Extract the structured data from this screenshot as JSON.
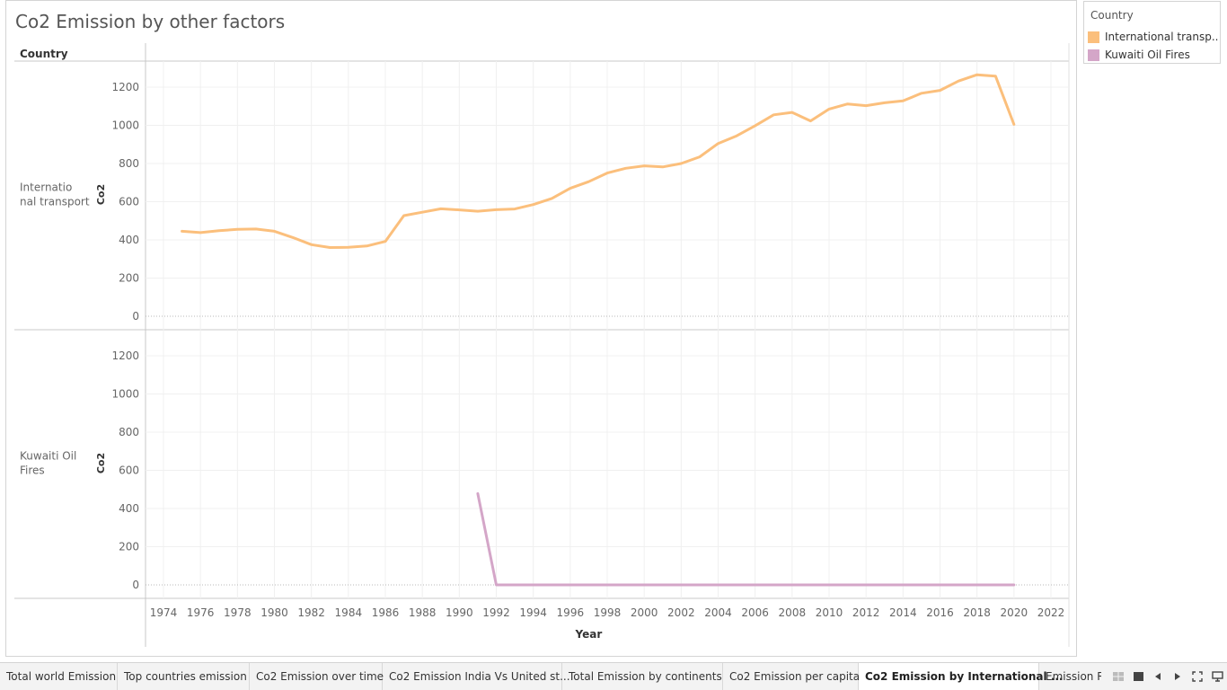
{
  "sheet": {
    "title": "Co2 Emission by other factors"
  },
  "legend": {
    "title": "Country",
    "items": [
      {
        "label": "International transp..",
        "color": "#fbbf7c"
      },
      {
        "label": "Kuwaiti Oil Fires",
        "color": "#d4a6c8"
      }
    ]
  },
  "chart_data": {
    "type": "line",
    "row_header": "Country",
    "xlabel": "Year",
    "ylabel": "Co2",
    "xlim": [
      1972,
      2024
    ],
    "ylim": [
      0,
      1350
    ],
    "x_ticks": [
      1974,
      1976,
      1978,
      1980,
      1982,
      1984,
      1986,
      1988,
      1990,
      1992,
      1994,
      1996,
      1998,
      2000,
      2002,
      2004,
      2006,
      2008,
      2010,
      2012,
      2014,
      2016,
      2018,
      2020,
      2022
    ],
    "y_ticks": [
      0,
      200,
      400,
      600,
      800,
      1000,
      1200
    ],
    "grid": true,
    "legend_position": "top-right",
    "panels": [
      {
        "row_label": "International transport",
        "color": "#fbbf7c",
        "x": [
          1975,
          1976,
          1977,
          1978,
          1979,
          1980,
          1981,
          1982,
          1983,
          1984,
          1985,
          1986,
          1987,
          1988,
          1989,
          1990,
          1991,
          1992,
          1993,
          1994,
          1995,
          1996,
          1997,
          1998,
          1999,
          2000,
          2001,
          2002,
          2003,
          2004,
          2005,
          2006,
          2007,
          2008,
          2009,
          2010,
          2011,
          2012,
          2013,
          2014,
          2015,
          2016,
          2017,
          2018,
          2019,
          2020
        ],
        "y": [
          445,
          438,
          448,
          455,
          457,
          445,
          412,
          375,
          360,
          361,
          368,
          392,
          527,
          545,
          563,
          557,
          550,
          558,
          562,
          585,
          617,
          670,
          705,
          750,
          775,
          788,
          782,
          800,
          835,
          905,
          945,
          998,
          1055,
          1068,
          1023,
          1085,
          1112,
          1103,
          1118,
          1128,
          1168,
          1183,
          1232,
          1265,
          1258,
          1005
        ]
      },
      {
        "row_label": "Kuwaiti Oil Fires",
        "color": "#d4a6c8",
        "x": [
          1991,
          1992,
          1993,
          1994,
          1995,
          1996,
          1997,
          1998,
          1999,
          2000,
          2001,
          2002,
          2003,
          2004,
          2005,
          2006,
          2007,
          2008,
          2009,
          2010,
          2011,
          2012,
          2013,
          2014,
          2015,
          2016,
          2017,
          2018,
          2019,
          2020
        ],
        "y": [
          478,
          0,
          0,
          0,
          0,
          0,
          0,
          0,
          0,
          0,
          0,
          0,
          0,
          0,
          0,
          0,
          0,
          0,
          0,
          0,
          0,
          0,
          0,
          0,
          0,
          0,
          0,
          0,
          0,
          0
        ]
      }
    ]
  },
  "tabs": [
    {
      "label": "Total world Emission",
      "active": false
    },
    {
      "label": "Top countries emission",
      "active": false
    },
    {
      "label": "Co2 Emission over time",
      "active": false
    },
    {
      "label": "Co2 Emission India Vs United st...",
      "active": false
    },
    {
      "label": "Total Emission by continents",
      "active": false
    },
    {
      "label": "Co2 Emission per capita",
      "active": false
    },
    {
      "label": "Co2 Emission by International ...",
      "active": true
    },
    {
      "label": "Emission R",
      "active": false
    }
  ],
  "tab_controls": [
    "grid-view-icon",
    "single-view-icon",
    "prev-icon",
    "next-icon",
    "fullscreen-icon",
    "presentation-icon"
  ]
}
